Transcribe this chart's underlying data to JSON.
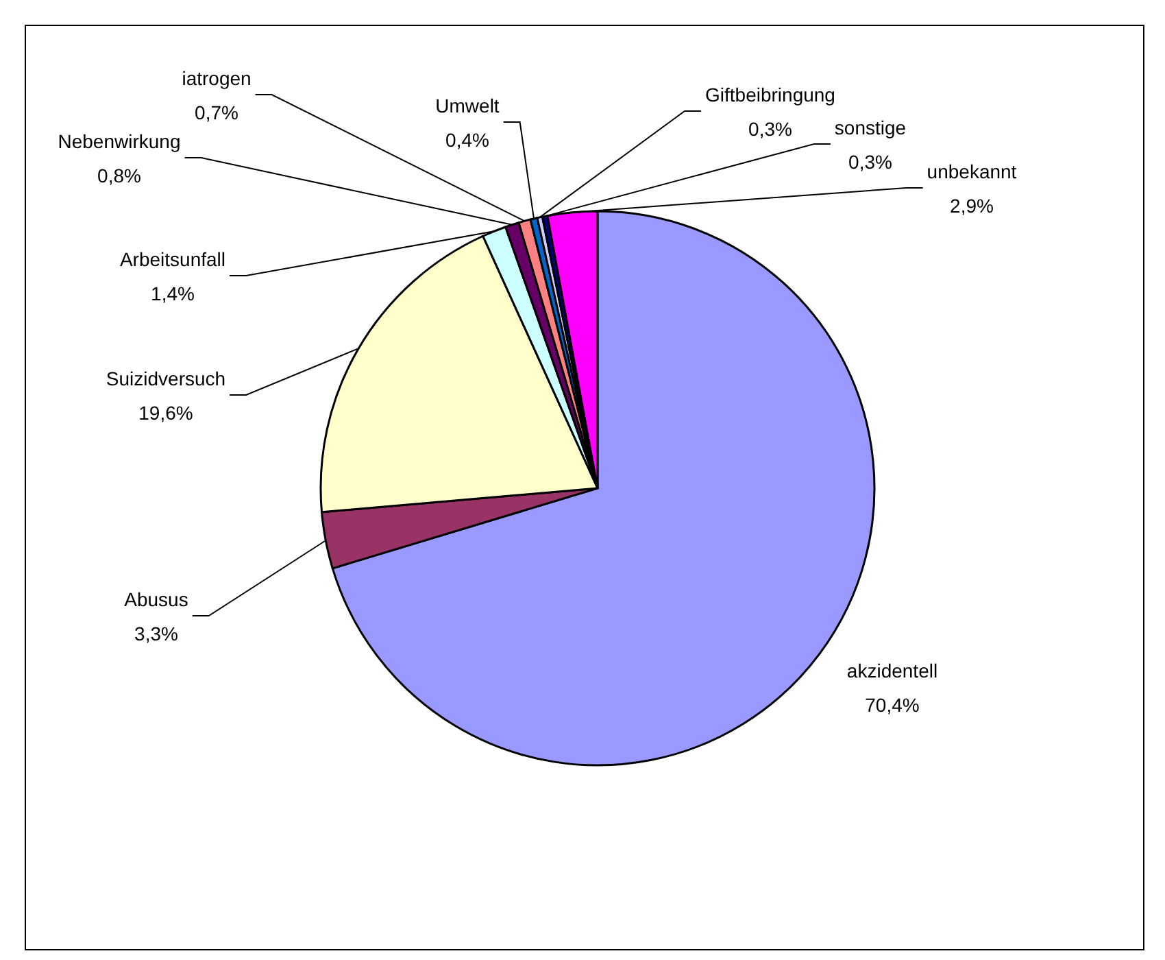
{
  "chart_data": {
    "type": "pie",
    "categories": [
      "akzidentell",
      "Abusus",
      "Suizidversuch",
      "Arbeitsunfall",
      "Nebenwirkung",
      "iatrogen",
      "Umwelt",
      "Giftbeibringung",
      "sonstige",
      "unbekannt"
    ],
    "values": [
      70.4,
      3.3,
      19.6,
      1.4,
      0.8,
      0.7,
      0.4,
      0.3,
      0.3,
      2.9
    ],
    "value_labels": [
      "70,4%",
      "3,3%",
      "19,6%",
      "1,4%",
      "0,8%",
      "0,7%",
      "0,4%",
      "0,3%",
      "0,3%",
      "2,9%"
    ],
    "colors": [
      "#9999ff",
      "#993366",
      "#ffffcc",
      "#ccffff",
      "#660066",
      "#ff8080",
      "#0066cc",
      "#ccccff",
      "#000080",
      "#ff00ff"
    ]
  }
}
